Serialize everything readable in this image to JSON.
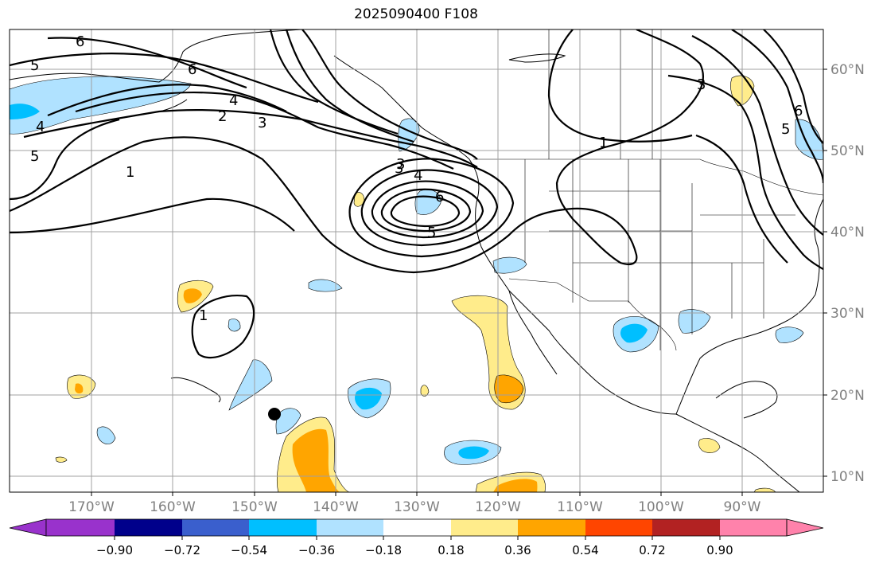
{
  "title": "2025090400 F108",
  "lon_labels": [
    "170°W",
    "160°W",
    "150°W",
    "140°W",
    "130°W",
    "120°W",
    "110°W",
    "100°W",
    "90°W"
  ],
  "lat_labels": [
    "60°N",
    "50°N",
    "40°N",
    "30°N",
    "20°N",
    "10°N"
  ],
  "colorbar": {
    "ticks": [
      "−0.90",
      "−0.72",
      "−0.54",
      "−0.36",
      "−0.18",
      "0.18",
      "0.36",
      "0.54",
      "0.72",
      "0.90"
    ],
    "colors": [
      "#9932cc",
      "#00008b",
      "#3a5fcd",
      "#00bfff",
      "#b0e2ff",
      "#ffffff",
      "#ffec8b",
      "#ffa500",
      "#ff4500",
      "#b22222",
      "#ff82ab"
    ]
  },
  "contour_labels": [
    "6",
    "5",
    "4",
    "5",
    "6",
    "2",
    "3",
    "4",
    "3",
    "1",
    "3",
    "4",
    "6",
    "5",
    "1",
    "1",
    "3",
    "5",
    "6"
  ],
  "colors": {
    "blue_light": "#b0e2ff",
    "blue": "#00bfff",
    "yellow": "#ffec8b",
    "orange": "#ffa500",
    "red": "#ff4500"
  }
}
